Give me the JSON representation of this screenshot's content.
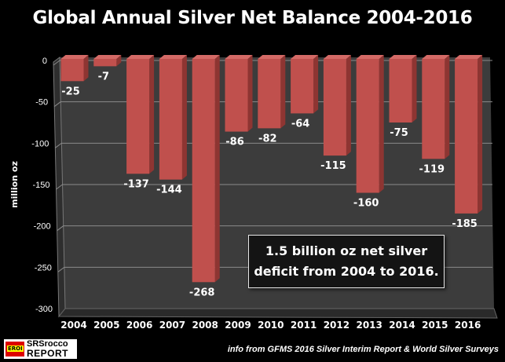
{
  "chart_data": {
    "type": "bar",
    "title": "Global Annual Silver Net Balance 2004-2016",
    "ylabel": "million oz",
    "xlabel": "",
    "categories": [
      "2004",
      "2005",
      "2006",
      "2007",
      "2008",
      "2009",
      "2010",
      "2011",
      "2012",
      "2013",
      "2014",
      "2015",
      "2016"
    ],
    "values": [
      -25,
      -7,
      -137,
      -144,
      -268,
      -86,
      -82,
      -64,
      -115,
      -160,
      -75,
      -119,
      -185
    ],
    "ylim": [
      -300,
      0
    ],
    "yticks": [
      0,
      -50,
      -100,
      -150,
      -200,
      -250,
      -300
    ],
    "grid": true,
    "style": "3d-column",
    "annotation": "1.5 billion oz net silver deficit from 2004 to 2016.",
    "colors": {
      "bar": "#c0504d",
      "bar_side": "#8e3532",
      "plot_bg": "#3c3c3c",
      "background": "#000000",
      "text": "#ffffff"
    }
  },
  "annotation_lines": [
    "1.5 billion oz net silver",
    "deficit from 2004 to 2016."
  ],
  "source": "info from GFMS 2016 Silver Interim Report & World Silver Surveys",
  "logo": {
    "badge": "EROI",
    "line1": "SRSrocco",
    "line2": "REPORT"
  }
}
